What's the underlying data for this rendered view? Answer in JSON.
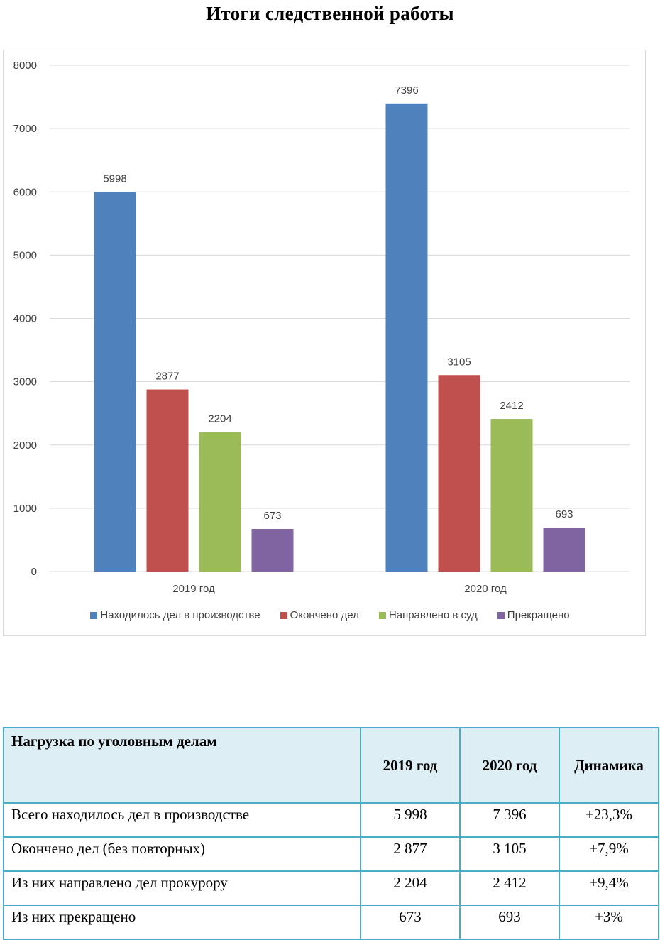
{
  "title": "Итоги следственной работы",
  "colors": {
    "series1": "#4f81bd",
    "series2": "#c0504d",
    "series3": "#9bbb59",
    "series4": "#8064a2",
    "grid": "#d9d9d9",
    "axis_text": "#404040"
  },
  "chart_data": {
    "type": "bar",
    "categories": [
      "2019 год",
      "2020 год"
    ],
    "series": [
      {
        "name": "Находилось дел в производстве",
        "values": [
          5998,
          7396
        ]
      },
      {
        "name": "Окончено дел",
        "values": [
          2877,
          3105
        ]
      },
      {
        "name": "Направлено в суд",
        "values": [
          2204,
          2412
        ]
      },
      {
        "name": "Прекращено",
        "values": [
          673,
          693
        ]
      }
    ],
    "ylim": [
      0,
      8000
    ],
    "yticks": [
      0,
      1000,
      2000,
      3000,
      4000,
      5000,
      6000,
      7000,
      8000
    ],
    "xlabel": "",
    "ylabel": "",
    "grid": true,
    "legend": "bottom",
    "data_labels": true
  },
  "table": {
    "headers": [
      "Нагрузка по уголовным делам",
      "2019 год",
      "2020 год",
      "Динамика"
    ],
    "rows": [
      [
        "Всего находилось дел в производстве",
        "5 998",
        "7 396",
        "+23,3%"
      ],
      [
        "Окончено дел (без повторных)",
        "2 877",
        "3 105",
        "+7,9%"
      ],
      [
        "Из них направлено дел прокурору",
        "2 204",
        "2 412",
        "+9,4%"
      ],
      [
        "Из них прекращено",
        "673",
        "693",
        "+3%"
      ]
    ]
  }
}
